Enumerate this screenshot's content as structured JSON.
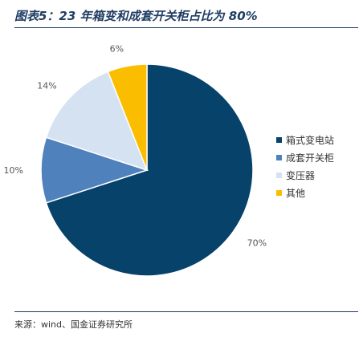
{
  "header": {
    "title": "图表5：23 年箱变和成套开关柜占比为 80%"
  },
  "footer": {
    "source": "来源：wind、国金证券研究所"
  },
  "chart_data": {
    "type": "pie",
    "title": "",
    "categories": [
      "箱式变电站",
      "成套开关柜",
      "变压器",
      "其他"
    ],
    "values": [
      70,
      10,
      14,
      6
    ],
    "value_labels": [
      "70%",
      "10%",
      "14%",
      "6%"
    ],
    "colors": [
      "#06426a",
      "#4f81bd",
      "#d4e2f1",
      "#fbbd00"
    ],
    "legend": "right"
  }
}
